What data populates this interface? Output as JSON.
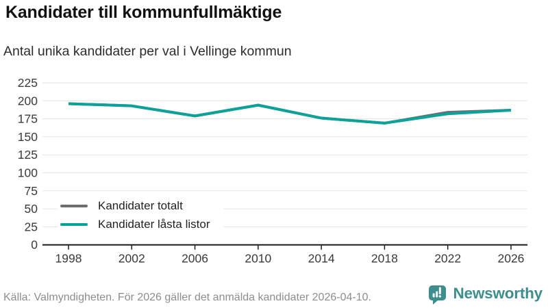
{
  "header": {
    "title": "Kandidater till kommunfullmäktige",
    "subtitle": "Antal unika kandidater per val i Vellinge kommun"
  },
  "chart_data": {
    "type": "line",
    "title": "Kandidater till kommunfullmäktige",
    "subtitle": "Antal unika kandidater per val i Vellinge kommun",
    "categories": [
      "1998",
      "2002",
      "2006",
      "2010",
      "2014",
      "2018",
      "2022",
      "2026"
    ],
    "series": [
      {
        "name": "Kandidater totalt",
        "color": "#6d6d6d",
        "values": [
          196,
          193,
          179,
          194,
          176,
          169,
          184,
          187
        ]
      },
      {
        "name": "Kandidater låsta listor",
        "color": "#0ca29a",
        "values": [
          196,
          193,
          179,
          194,
          176,
          169,
          182,
          187
        ]
      }
    ],
    "xlabel": "",
    "ylabel": "",
    "ylim": [
      0,
      225
    ],
    "yticks": [
      0,
      25,
      50,
      75,
      100,
      125,
      150,
      175,
      200,
      225
    ],
    "grid": true,
    "legend_position": "inside-bottom-left"
  },
  "footer": {
    "source": "Källa: Valmyndigheten. För 2026 gäller det anmälda kandidater 2026-04-10.",
    "brand": "Newsworthy",
    "brand_color": "#3e8e8e",
    "logo_icon": "bar-chart-speech-bubble"
  }
}
